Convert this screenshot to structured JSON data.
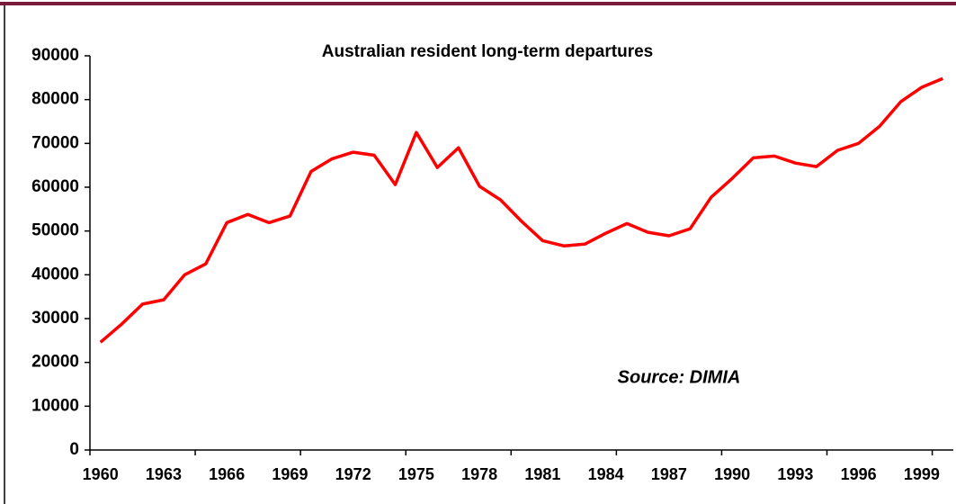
{
  "chart_data": {
    "type": "line",
    "title": "Australian resident long-term departures",
    "annotation": "Source: DIMIA",
    "categories": [
      "1960",
      null,
      null,
      "1963",
      null,
      null,
      "1966",
      null,
      null,
      "1969",
      null,
      null,
      "1972",
      null,
      null,
      "1975",
      null,
      null,
      "1978",
      null,
      null,
      "1981",
      null,
      null,
      "1984",
      null,
      null,
      "1987",
      null,
      null,
      "1990",
      null,
      null,
      "1993",
      null,
      null,
      "1996",
      null,
      null,
      "1999",
      null
    ],
    "series": [
      {
        "name": "Departures",
        "color": "#ff0000",
        "values": [
          24600,
          28700,
          33300,
          34300,
          40000,
          42500,
          51900,
          53800,
          51900,
          53400,
          63600,
          66500,
          68000,
          67300,
          60600,
          72500,
          64500,
          69000,
          60200,
          57100,
          52200,
          47800,
          46600,
          47000,
          49500,
          51700,
          49700,
          48900,
          50500,
          57700,
          62000,
          66700,
          67100,
          65500,
          64700,
          68400,
          70000,
          73900,
          79500,
          82800,
          84800
        ]
      }
    ],
    "ylim": [
      0,
      90000
    ],
    "yticks": [
      0,
      10000,
      20000,
      30000,
      40000,
      50000,
      60000,
      70000,
      80000,
      90000
    ]
  }
}
